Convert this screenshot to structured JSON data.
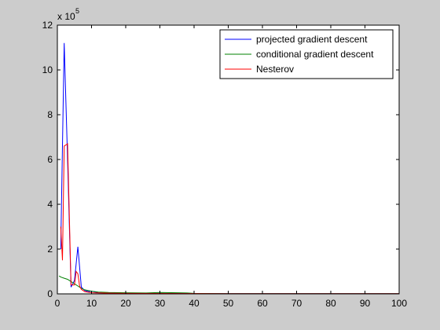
{
  "chart_data": {
    "type": "line",
    "title": "",
    "xlabel": "",
    "ylabel": "",
    "y_multiplier_label": "x 10",
    "y_multiplier_exponent": "5",
    "xlim": [
      0,
      100
    ],
    "ylim": [
      0,
      12
    ],
    "xticks": [
      0,
      10,
      20,
      30,
      40,
      50,
      60,
      70,
      80,
      90,
      100
    ],
    "yticks": [
      0,
      2,
      4,
      6,
      8,
      10,
      12
    ],
    "grid": false,
    "legend_position": "top-right",
    "series": [
      {
        "name": "projected gradient descent",
        "color": "#0000ff",
        "x": [
          1,
          2,
          3,
          4,
          5,
          6,
          7,
          8,
          9,
          10,
          12,
          15,
          20,
          30,
          50,
          100
        ],
        "y": [
          2.0,
          11.2,
          6.0,
          0.3,
          0.6,
          2.1,
          0.3,
          0.15,
          0.1,
          0.12,
          0.05,
          0.04,
          0.03,
          0.02,
          0.01,
          0.01
        ]
      },
      {
        "name": "conditional gradient descent",
        "color": "#008000",
        "x": [
          0.5,
          1,
          2,
          3,
          4,
          5,
          6,
          7,
          8,
          10,
          12,
          15,
          20,
          26,
          30,
          35,
          38,
          40,
          50,
          100
        ],
        "y": [
          0.8,
          0.75,
          0.7,
          0.65,
          0.55,
          0.45,
          0.35,
          0.25,
          0.18,
          0.12,
          0.08,
          0.06,
          0.05,
          0.04,
          0.06,
          0.05,
          0.04,
          0.02,
          0.01,
          0.01
        ]
      },
      {
        "name": "Nesterov",
        "color": "#ff0000",
        "x": [
          1,
          1.5,
          2,
          3,
          4,
          5,
          5.5,
          6,
          6.5,
          7,
          8,
          10,
          15,
          20,
          50,
          100
        ],
        "y": [
          3.0,
          1.5,
          6.6,
          6.7,
          0.4,
          0.4,
          1.0,
          0.9,
          0.35,
          0.2,
          0.1,
          0.05,
          0.03,
          0.02,
          0.01,
          0.01
        ]
      }
    ]
  }
}
